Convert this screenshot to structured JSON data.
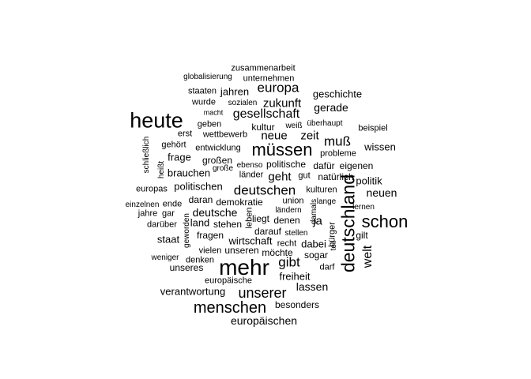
{
  "words": [
    {
      "text": "zusammenarbeit"
    },
    {
      "text": "globalisierung"
    },
    {
      "text": "unternehmen"
    },
    {
      "text": "europa"
    },
    {
      "text": "staaten"
    },
    {
      "text": "jahren"
    },
    {
      "text": "geschichte"
    },
    {
      "text": "wurde"
    },
    {
      "text": "sozialen"
    },
    {
      "text": "zukunft"
    },
    {
      "text": "gerade"
    },
    {
      "text": "macht"
    },
    {
      "text": "gesellschaft"
    },
    {
      "text": "heute"
    },
    {
      "text": "geben"
    },
    {
      "text": "kultur"
    },
    {
      "text": "weiß"
    },
    {
      "text": "überhaupt"
    },
    {
      "text": "beispiel"
    },
    {
      "text": "erst"
    },
    {
      "text": "wettbewerb"
    },
    {
      "text": "neue"
    },
    {
      "text": "zeit"
    },
    {
      "text": "muß"
    },
    {
      "text": "gehört"
    },
    {
      "text": "entwicklung"
    },
    {
      "text": "müssen"
    },
    {
      "text": "wissen"
    },
    {
      "text": "schließlich"
    },
    {
      "text": "frage"
    },
    {
      "text": "großen"
    },
    {
      "text": "probleme"
    },
    {
      "text": "heißt"
    },
    {
      "text": "große"
    },
    {
      "text": "ebenso"
    },
    {
      "text": "politische"
    },
    {
      "text": "dafür"
    },
    {
      "text": "eigenen"
    },
    {
      "text": "brauchen"
    },
    {
      "text": "länder"
    },
    {
      "text": "gut"
    },
    {
      "text": "geht"
    },
    {
      "text": "natürlich"
    },
    {
      "text": "europas"
    },
    {
      "text": "politischen"
    },
    {
      "text": "deutschen"
    },
    {
      "text": "kulturen"
    },
    {
      "text": "politik"
    },
    {
      "text": "neuen"
    },
    {
      "text": "deutschland"
    },
    {
      "text": "daran"
    },
    {
      "text": "demokratie"
    },
    {
      "text": "union"
    },
    {
      "text": "lange"
    },
    {
      "text": "einzelnen"
    },
    {
      "text": "ende"
    },
    {
      "text": "jahre"
    },
    {
      "text": "gar"
    },
    {
      "text": "deutsche"
    },
    {
      "text": "ländern"
    },
    {
      "text": "lernen"
    },
    {
      "text": "land"
    },
    {
      "text": "leben"
    },
    {
      "text": "liegt"
    },
    {
      "text": "denen"
    },
    {
      "text": "ja"
    },
    {
      "text": "damals"
    },
    {
      "text": "schon"
    },
    {
      "text": "darüber"
    },
    {
      "text": "stehen"
    },
    {
      "text": "darauf"
    },
    {
      "text": "bürger"
    },
    {
      "text": "stellen"
    },
    {
      "text": "gilt"
    },
    {
      "text": "staat"
    },
    {
      "text": "fragen"
    },
    {
      "text": "geworden"
    },
    {
      "text": "wirtschaft"
    },
    {
      "text": "dabei"
    },
    {
      "text": "teil"
    },
    {
      "text": "welt"
    },
    {
      "text": "recht"
    },
    {
      "text": "vielen"
    },
    {
      "text": "unseren"
    },
    {
      "text": "möchte"
    },
    {
      "text": "sogar"
    },
    {
      "text": "weniger"
    },
    {
      "text": "denken"
    },
    {
      "text": "gibt"
    },
    {
      "text": "mehr"
    },
    {
      "text": "darf"
    },
    {
      "text": "unseres"
    },
    {
      "text": "freiheit"
    },
    {
      "text": "europäische"
    },
    {
      "text": "lassen"
    },
    {
      "text": "verantwortung"
    },
    {
      "text": "unserer"
    },
    {
      "text": "besonders"
    },
    {
      "text": "menschen"
    },
    {
      "text": "europäischen"
    }
  ]
}
